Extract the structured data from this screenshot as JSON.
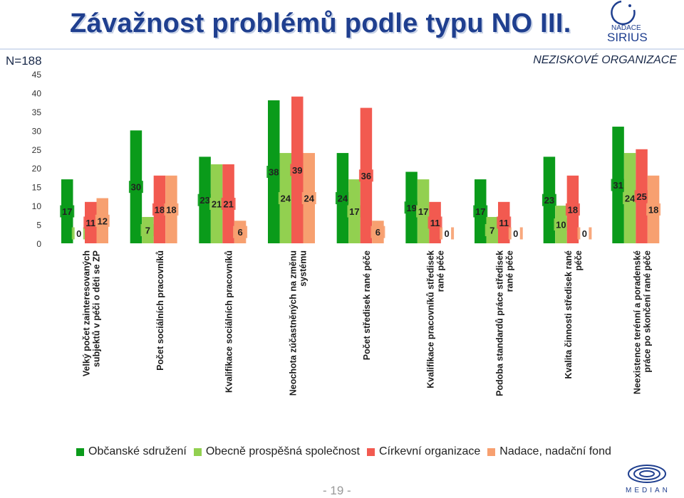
{
  "header": {
    "title": "Závažnost problémů podle typu NO III.",
    "n_label": "N=188",
    "org_label": "NEZISKOVÉ ORGANIZACE",
    "page_number": "- 19 -"
  },
  "logos": {
    "sirius": {
      "line1": "NADACE",
      "line2": "SIRIUS"
    },
    "median": {
      "text": "MEDIAN"
    }
  },
  "colors": {
    "series": [
      "#0a9b1a",
      "#92d050",
      "#f25a50",
      "#f7a070"
    ],
    "label_box": [
      "#0a9b1a",
      "#92d050",
      "#f25a50",
      "#f7a070"
    ]
  },
  "chart_data": {
    "type": "bar",
    "categories": [
      "Velký počet zainteresovaných subjektů v péči o děti se ZP",
      "Počet sociálních pracovníků",
      "Kvalifikace sociálních pracovníků",
      "Neochota zúčastněných na změnu systému",
      "Počet středisek rané péče",
      "Kvalifikace pracovníků středisek rané péče",
      "Podoba standardů práce středisek rané péče",
      "Kvalita činnosti středisek rané péče",
      "Neexistence terénní a poradenské práce po skončení rané péče"
    ],
    "series": [
      {
        "name": "Občanské sdružení",
        "values": [
          17,
          30,
          23,
          38,
          24,
          19,
          17,
          23,
          31
        ]
      },
      {
        "name": "Obecně prospěšná společnost",
        "values": [
          0,
          7,
          21,
          24,
          17,
          17,
          7,
          10,
          24
        ]
      },
      {
        "name": "Církevní organizace",
        "values": [
          11,
          18,
          21,
          39,
          36,
          11,
          11,
          18,
          25
        ]
      },
      {
        "name": "Nadace, nadační fond",
        "values": [
          12,
          18,
          6,
          24,
          6,
          0,
          0,
          0,
          18
        ]
      }
    ],
    "ylim": [
      0,
      45
    ],
    "yticks": [
      0,
      5,
      10,
      15,
      20,
      25,
      30,
      35,
      40,
      45
    ],
    "grid": false,
    "legend_position": "bottom"
  }
}
